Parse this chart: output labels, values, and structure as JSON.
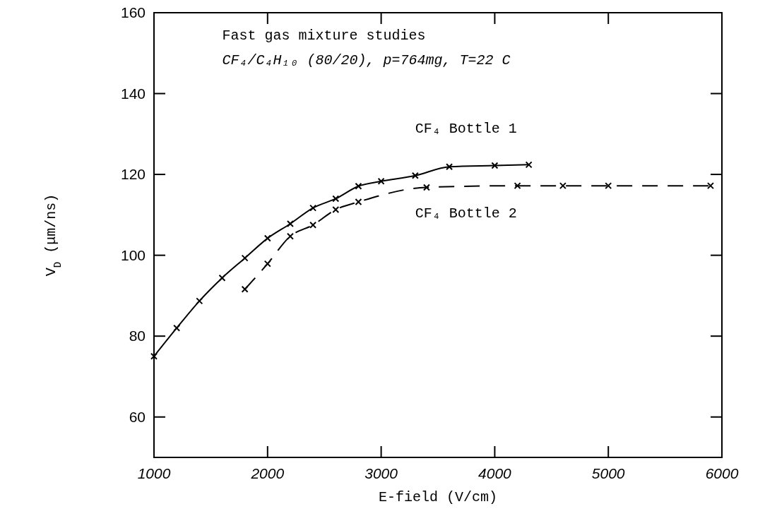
{
  "chart_data": {
    "type": "line",
    "title": "Fast gas mixture studies",
    "subtitle": "CF₄/C₄H₁₀ (80/20), p=764mg, T=22 C",
    "xlabel": "E-field (V/cm)",
    "ylabel": "V$_{D}$ (μm/ns)",
    "xlim": [
      1000,
      6000
    ],
    "xticks": [
      1000,
      2000,
      3000,
      4000,
      5000,
      6000
    ],
    "ylim": [
      50,
      160
    ],
    "yticks": [
      60,
      80,
      100,
      120,
      140,
      160
    ],
    "marker": "cross",
    "series": [
      {
        "name": "CF₄ Bottle 1",
        "color": "#000000",
        "line_style": "solid",
        "x": [
          1000,
          1200,
          1400,
          1600,
          1800,
          2000,
          2200,
          2400,
          2600,
          2800,
          3000,
          3300,
          3600,
          4000,
          4300
        ],
        "values": [
          75,
          82,
          88.7,
          94.4,
          99.3,
          104.2,
          107.8,
          111.7,
          114,
          117.1,
          118.3,
          119.7,
          121.9,
          122.2,
          122.4
        ]
      },
      {
        "name": "CF₄ Bottle 2",
        "color": "#000000",
        "line_style": "dashed",
        "x": [
          1800,
          2000,
          2200,
          2400,
          2600,
          2800,
          3400,
          4200,
          4600,
          5000,
          5900
        ],
        "values": [
          91.6,
          97.9,
          104.7,
          107.5,
          111.3,
          113.2,
          116.8,
          117.2,
          117.2,
          117.2,
          117.2
        ]
      }
    ]
  }
}
